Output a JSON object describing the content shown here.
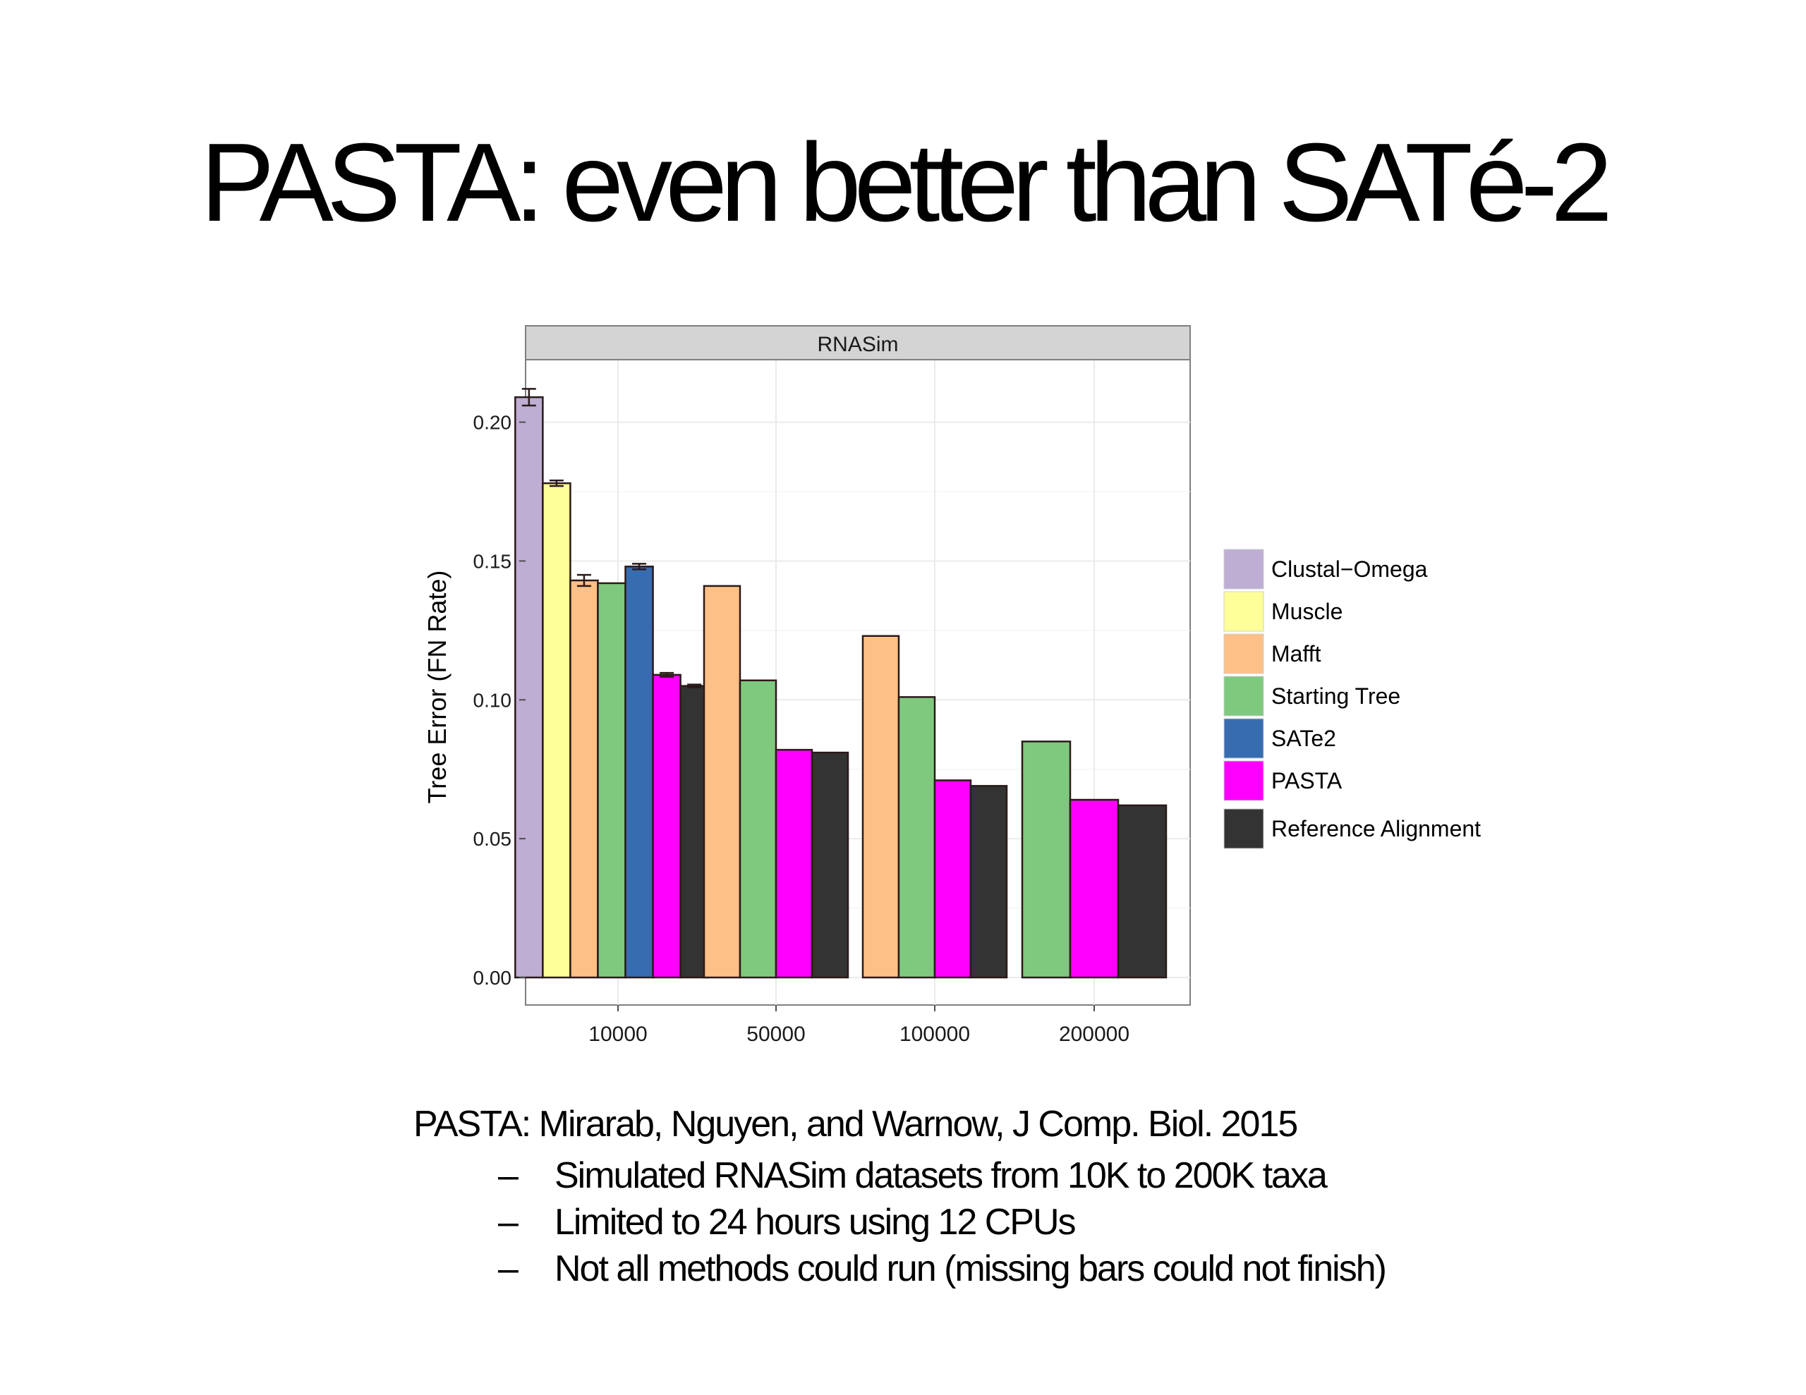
{
  "slide": {
    "title": "PASTA: even better than SATé-2",
    "caption": "PASTA: Mirarab, Nguyen, and Warnow, J Comp. Biol. 2015",
    "bullets": [
      "Simulated RNASim datasets from 10K to 200K taxa",
      "Limited to 24 hours using 12 CPUs",
      "Not all methods could run (missing bars could not finish)"
    ],
    "bullet_marker": "–"
  },
  "chart_data": {
    "type": "bar",
    "title": "RNASim",
    "xlabel": "",
    "ylabel": "Tree Error (FN Rate)",
    "ylim": [
      0,
      0.22
    ],
    "yticks": [
      0.0,
      0.05,
      0.1,
      0.15,
      0.2
    ],
    "ytick_labels": [
      "0.00",
      "0.05",
      "0.10",
      "0.15",
      "0.20"
    ],
    "grid": true,
    "legend_position": "right",
    "categories": [
      "10000",
      "50000",
      "100000",
      "200000"
    ],
    "series": [
      {
        "name": "Clustal−Omega",
        "color": "#beaed4",
        "values": [
          0.209,
          null,
          null,
          null
        ],
        "errors": [
          0.003,
          null,
          null,
          null
        ]
      },
      {
        "name": "Muscle",
        "color": "#ffff99",
        "values": [
          0.178,
          null,
          null,
          null
        ],
        "errors": [
          0.001,
          null,
          null,
          null
        ]
      },
      {
        "name": "Mafft",
        "color": "#fdc086",
        "values": [
          0.143,
          0.141,
          0.123,
          null
        ],
        "errors": [
          0.002,
          null,
          null,
          null
        ]
      },
      {
        "name": "Starting Tree",
        "color": "#7fc97f",
        "values": [
          0.142,
          0.107,
          0.101,
          0.085
        ],
        "errors": [
          null,
          null,
          null,
          null
        ]
      },
      {
        "name": "SATe2",
        "color": "#386cb0",
        "values": [
          0.148,
          null,
          null,
          null
        ],
        "errors": [
          0.001,
          null,
          null,
          null
        ]
      },
      {
        "name": "PASTA",
        "color": "#ff00ff",
        "values": [
          0.109,
          0.082,
          0.071,
          0.064
        ],
        "errors": [
          0.0007,
          null,
          null,
          null
        ]
      },
      {
        "name": "Reference Alignment",
        "color": "#333333",
        "values": [
          0.105,
          0.081,
          0.069,
          0.062
        ],
        "errors": [
          0.0005,
          null,
          null,
          null
        ]
      }
    ]
  }
}
